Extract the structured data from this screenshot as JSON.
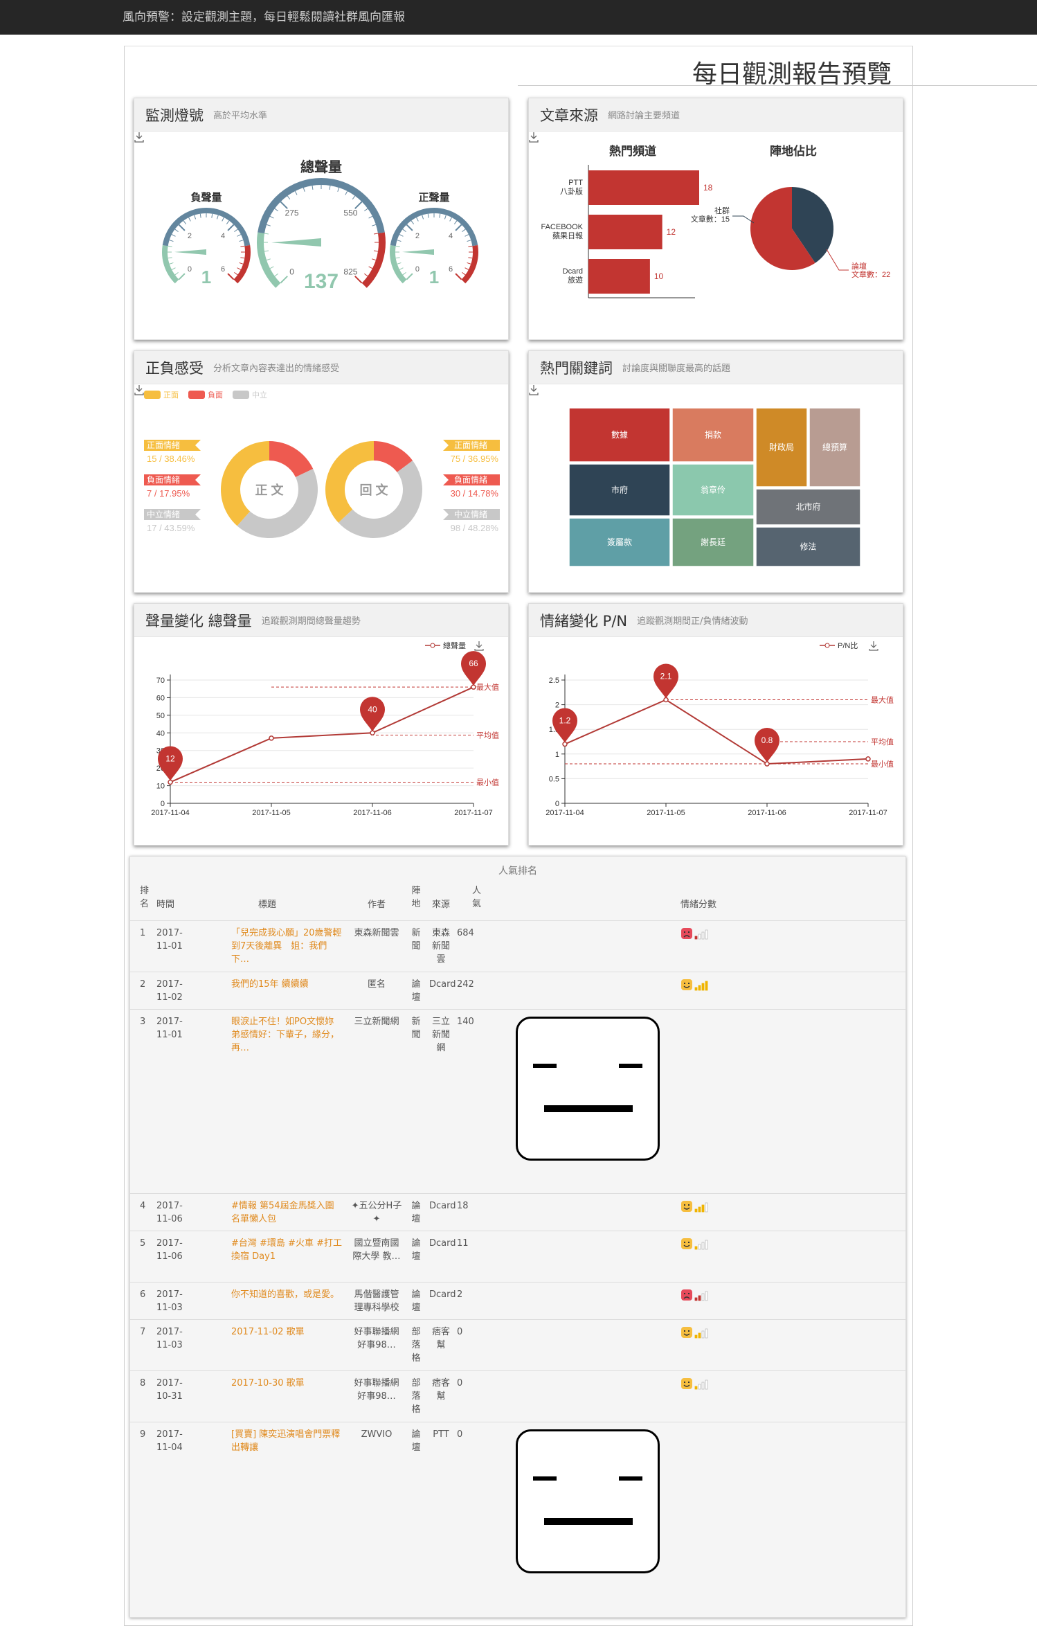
{
  "topbar": {
    "text": "風向預警：設定觀測主題，每日輕鬆閱讀社群風向匯報"
  },
  "page": {
    "title": "每日觀測報告預覽"
  },
  "cards": {
    "monitor": {
      "title": "監測燈號",
      "subtitle": "高於平均水準"
    },
    "source": {
      "title": "文章來源",
      "subtitle": "網路討論主要頻道"
    },
    "sentiment": {
      "title": "正負感受",
      "subtitle": "分析文章內容表達出的情緒感受"
    },
    "keywords": {
      "title": "熱門關鍵詞",
      "subtitle": "討論度與關聯度最高的話題"
    },
    "volume": {
      "title": "聲量變化 總聲量",
      "subtitle": "追蹤觀測期間總聲量趨勢"
    },
    "emotion": {
      "title": "情緒變化 P/N",
      "subtitle": "追蹤觀測期間正/負情緒波動"
    }
  },
  "gauges": {
    "center": {
      "label": "總聲量",
      "value": "137",
      "ticks": [
        "0",
        "275",
        "550",
        "825"
      ],
      "fraction": 0.166
    },
    "left": {
      "label": "負聲量",
      "value": "1",
      "ticks": [
        "0",
        "2",
        "4",
        "6"
      ],
      "fraction": 0.167
    },
    "right": {
      "label": "正聲量",
      "value": "1",
      "ticks": [
        "0",
        "2",
        "4",
        "6"
      ],
      "fraction": 0.167
    }
  },
  "sources": {
    "bar_title": "熱門頻道",
    "pie_title": "陣地佔比",
    "bars": [
      {
        "l1": "PTT",
        "l2": "八卦版",
        "v": 18
      },
      {
        "l1": "FACEBOOK",
        "l2": "蘋果日報",
        "v": 12
      },
      {
        "l1": "Dcard",
        "l2": "旅遊",
        "v": 10
      }
    ],
    "pie": [
      {
        "l1": "社群",
        "l2": "文章數：15",
        "v": 15,
        "color": "#2f4455"
      },
      {
        "l1": "論壇",
        "l2": "文章數：22",
        "v": 22,
        "color": "#c23531"
      }
    ]
  },
  "sentiment": {
    "legend": [
      {
        "label": "正面",
        "color": "#f6be3f"
      },
      {
        "label": "負面",
        "color": "#ee5a50"
      },
      {
        "label": "中立",
        "color": "#c8c8c8"
      }
    ],
    "post": {
      "center": "正 文",
      "pos_label": "正面情緒",
      "pos_val": "15 / 38.46%",
      "neg_label": "負面情緒",
      "neg_val": "7 / 17.95%",
      "neu_label": "中立情緒",
      "neu_val": "17 / 43.59%",
      "values": [
        15,
        7,
        17
      ]
    },
    "reply": {
      "center": "回 文",
      "pos_label": "正面情緒",
      "pos_val": "75 / 36.95%",
      "neg_label": "負面情緒",
      "neg_val": "30 / 14.78%",
      "neu_label": "中立情緒",
      "neu_val": "98 / 48.28%",
      "values": [
        75,
        30,
        98
      ]
    }
  },
  "keywords": [
    {
      "w": "數據",
      "c": "#c23531"
    },
    {
      "w": "捐款",
      "c": "#d97b5f"
    },
    {
      "w": "財政局",
      "c": "#cf8a27"
    },
    {
      "w": "總預算",
      "c": "#b89c92"
    },
    {
      "w": "市府",
      "c": "#2f4455"
    },
    {
      "w": "翁章伶",
      "c": "#8bc8ad"
    },
    {
      "w": "北市府",
      "c": "#6f7378"
    },
    {
      "w": "簽屬款",
      "c": "#5f9fa6"
    },
    {
      "w": "謝長廷",
      "c": "#74a27f"
    },
    {
      "w": "修法",
      "c": "#566470"
    }
  ],
  "chart_data": [
    {
      "type": "line",
      "title": "聲量變化 總聲量",
      "legend": "總聲量",
      "x": [
        "2017-11-04",
        "2017-11-05",
        "2017-11-06",
        "2017-11-07"
      ],
      "series": [
        {
          "name": "總聲量",
          "values": [
            12,
            37,
            40,
            66
          ]
        }
      ],
      "ylim": [
        0,
        70
      ],
      "yticks": [
        "0",
        "10",
        "20",
        "30",
        "40",
        "50",
        "60",
        "70"
      ],
      "markpoints": [
        "12",
        "40",
        "66"
      ],
      "marklines": [
        {
          "label": "最大值",
          "value": 66
        },
        {
          "label": "平均值",
          "value": 38.75
        },
        {
          "label": "最小值",
          "value": 12
        }
      ]
    },
    {
      "type": "line",
      "title": "情緒變化 P/N",
      "legend": "P/N比",
      "x": [
        "2017-11-04",
        "2017-11-05",
        "2017-11-06",
        "2017-11-07"
      ],
      "series": [
        {
          "name": "P/N比",
          "values": [
            1.2,
            2.1,
            0.8,
            0.9
          ]
        }
      ],
      "ylim": [
        0,
        2.5
      ],
      "yticks": [
        "0",
        "0.5",
        "1",
        "1.5",
        "2",
        "2.5"
      ],
      "markpoints": [
        "1.2",
        "2.1",
        "0.8"
      ],
      "marklines": [
        {
          "label": "最大值",
          "value": 2.1
        },
        {
          "label": "平均值",
          "value": 1.25
        },
        {
          "label": "最小值",
          "value": 0.8
        }
      ]
    }
  ],
  "ranking": {
    "caption": "人氣排名",
    "headers": {
      "rank": "排名",
      "date": "時間",
      "title": "標題",
      "author": "作者",
      "camp": "陣地",
      "source": "來源",
      "pop": "人氣",
      "score": "情緒分數"
    },
    "rows": [
      {
        "rank": "1",
        "date": "2017-11-01",
        "title": "「兒完成我心願」20歲警輕到7天後離異　姐：我們下…",
        "author": "東森新聞雲",
        "camp": "新聞",
        "source": "東森新聞雲",
        "pop": "684",
        "mood": "neg",
        "level": 1
      },
      {
        "rank": "2",
        "date": "2017-11-02",
        "title": "我們的15年 續續續",
        "author": "匿名",
        "camp": "論壇",
        "source": "Dcard",
        "pop": "242",
        "mood": "pos",
        "level": 4
      },
      {
        "rank": "3",
        "date": "2017-11-01",
        "title": "眼淚止不住！如PO文懷妳弟感情好：下輩子，緣分，再…",
        "author": "三立新聞網",
        "camp": "新聞",
        "source": "三立新聞網",
        "pop": "140",
        "mood": "big",
        "level": 0
      },
      {
        "rank": "4",
        "date": "2017-11-06",
        "title": "#情報 第54屆金馬獎入圍名單懶人包",
        "author": "✦五公分H子✦",
        "camp": "論壇",
        "source": "Dcard",
        "pop": "18",
        "mood": "pos",
        "level": 3
      },
      {
        "rank": "5",
        "date": "2017-11-06",
        "title": "#台灣 #環島 #火車 #打工換宿 Day1",
        "author": "國立暨南國際大學 教…",
        "camp": "論壇",
        "source": "Dcard",
        "pop": "11",
        "mood": "pos",
        "level": 1
      },
      {
        "rank": "6",
        "date": "2017-11-03",
        "title": "你不知道的喜歡，或是愛。",
        "author": "馬偕醫護管理專科學校",
        "camp": "論壇",
        "source": "Dcard",
        "pop": "2",
        "mood": "neg",
        "level": 2
      },
      {
        "rank": "7",
        "date": "2017-11-03",
        "title": "2017-11-02 歌單",
        "author": "好事聯播網 好事98…",
        "camp": "部落格",
        "source": "痞客幫",
        "pop": "0",
        "mood": "pos",
        "level": 2
      },
      {
        "rank": "8",
        "date": "2017-10-31",
        "title": "2017-10-30 歌單",
        "author": "好事聯播網 好事98…",
        "camp": "部落格",
        "source": "痞客幫",
        "pop": "0",
        "mood": "pos",
        "level": 1
      },
      {
        "rank": "9",
        "date": "2017-11-04",
        "title": "[買賣] 陳奕迅演唱會門票釋出轉讓",
        "author": "ZWVIO",
        "camp": "論壇",
        "source": "PTT",
        "pop": "0",
        "mood": "big",
        "level": 0
      }
    ]
  }
}
